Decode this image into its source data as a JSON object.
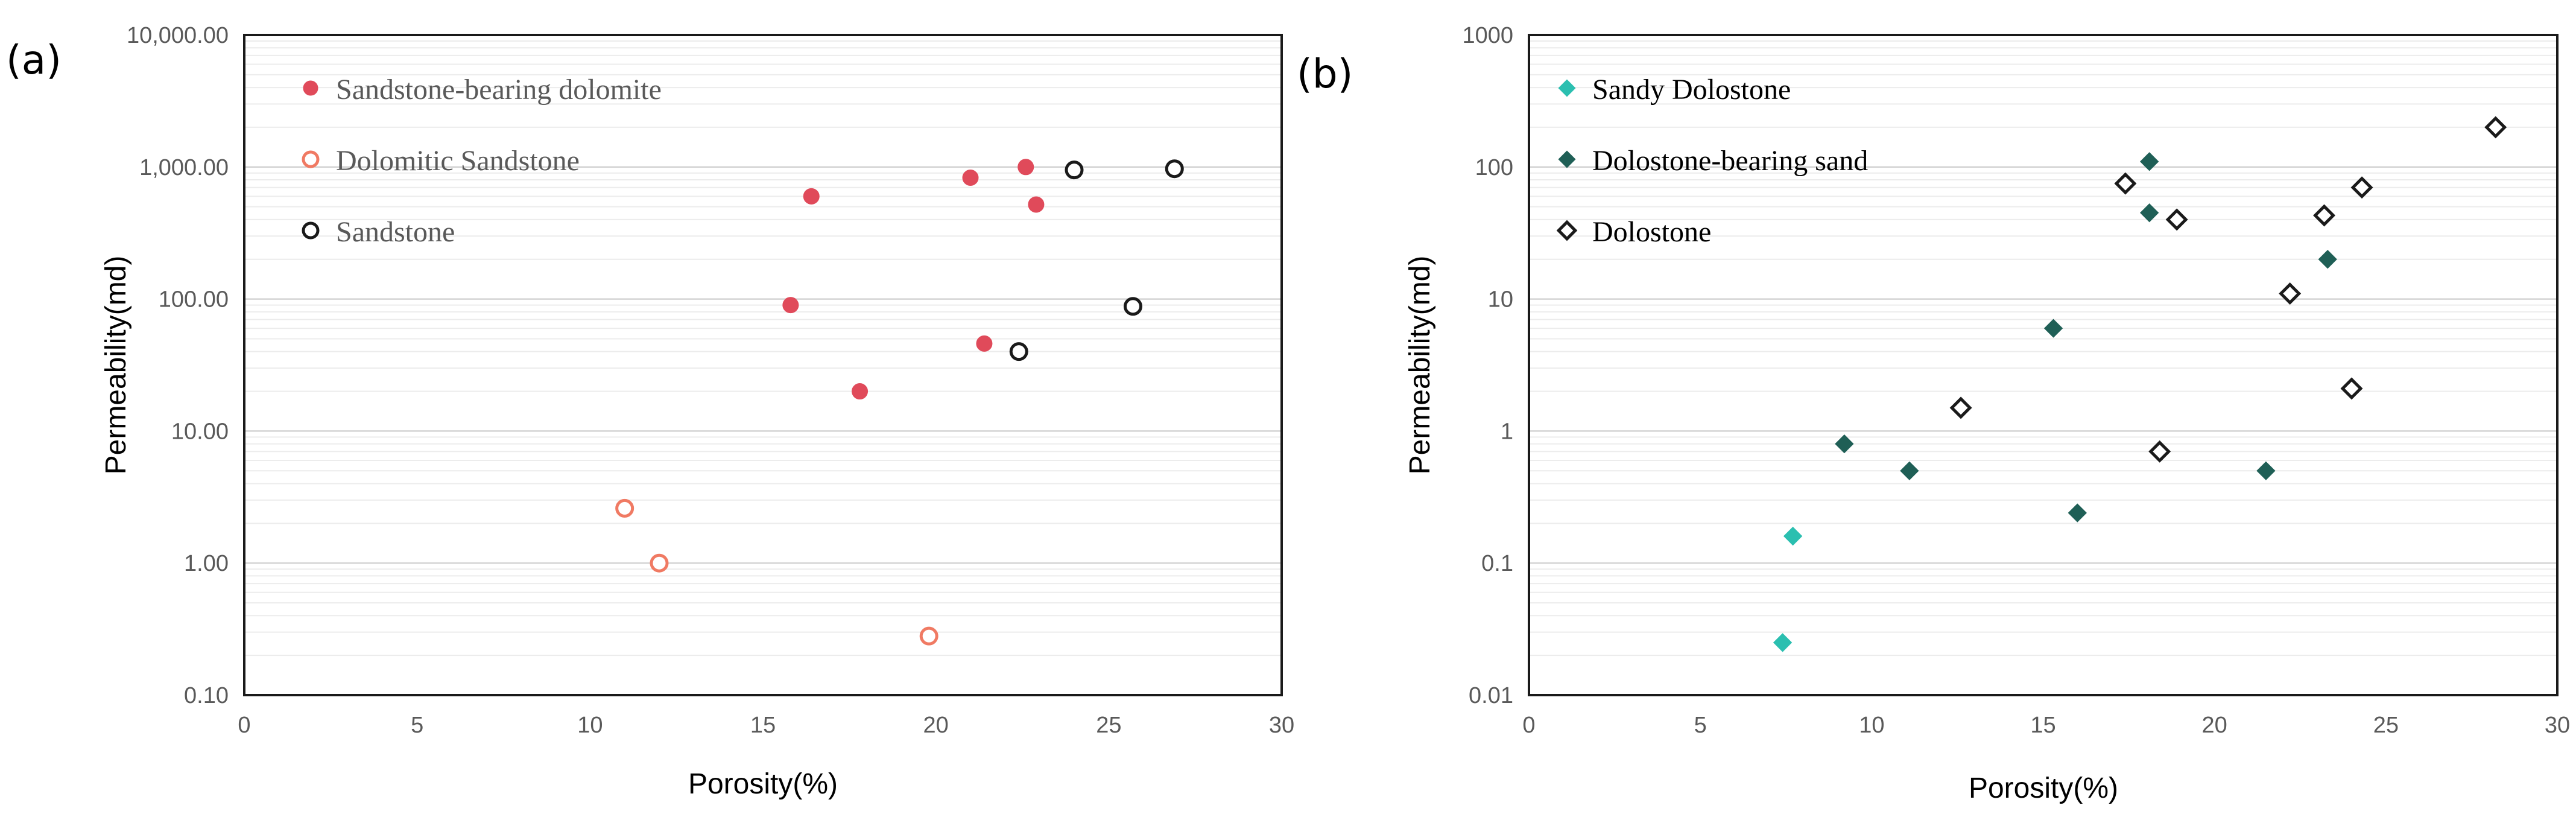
{
  "chart_data": [
    {
      "panel_label": "(a)",
      "type": "scatter",
      "x_scale": "linear",
      "y_scale": "log",
      "xlabel": "Porosity(%)",
      "ylabel": "Permeability(md)",
      "xlim": [
        0,
        30
      ],
      "ylim": [
        0.1,
        10000
      ],
      "x_ticks": [
        0,
        5,
        10,
        15,
        20,
        25,
        30
      ],
      "x_tick_labels": [
        "0",
        "5",
        "10",
        "15",
        "20",
        "25",
        "30"
      ],
      "y_ticks": [
        0.1,
        1,
        10,
        100,
        1000,
        10000
      ],
      "y_tick_labels": [
        "0.10",
        "1.00",
        "10.00",
        "100.00",
        "1,000.00",
        "10,000.00"
      ],
      "grid": true,
      "legend_position": "top-left",
      "legend_text_color": "#595959",
      "series": [
        {
          "name": "Sandstone-bearing dolomite",
          "marker": "filled-circle",
          "color": "#e04a5a",
          "x": [
            16.4,
            15.8,
            17.8,
            21.0,
            22.6,
            22.9,
            21.4
          ],
          "y": [
            600,
            90,
            20,
            830,
            1000,
            520,
            46
          ]
        },
        {
          "name": "Dolomitic Sandstone",
          "marker": "open-circle",
          "color": "#f07a63",
          "x": [
            11.0,
            12.0,
            19.8
          ],
          "y": [
            2.6,
            1.0,
            0.28
          ]
        },
        {
          "name": "Sandstone",
          "marker": "open-circle",
          "color": "#1a1a1a",
          "x": [
            24.0,
            26.9,
            25.7,
            22.4
          ],
          "y": [
            950,
            970,
            88,
            40
          ]
        }
      ]
    },
    {
      "panel_label": "(b)",
      "type": "scatter",
      "x_scale": "linear",
      "y_scale": "log",
      "xlabel": "Porosity(%)",
      "ylabel": "Permeability(md)",
      "xlim": [
        0,
        30
      ],
      "ylim": [
        0.01,
        1000
      ],
      "x_ticks": [
        0,
        5,
        10,
        15,
        20,
        25,
        30
      ],
      "x_tick_labels": [
        "0",
        "5",
        "10",
        "15",
        "20",
        "25",
        "30"
      ],
      "y_ticks": [
        0.01,
        0.1,
        1,
        10,
        100,
        1000
      ],
      "y_tick_labels": [
        "0.01",
        "0.1",
        "1",
        "10",
        "100",
        "1000"
      ],
      "grid": true,
      "legend_position": "top-left",
      "legend_text_color": "#000000",
      "series": [
        {
          "name": "Sandy Dolostone",
          "marker": "filled-diamond",
          "color": "#2bbfb0",
          "x": [
            7.7,
            7.4
          ],
          "y": [
            0.16,
            0.025
          ]
        },
        {
          "name": "Dolostone-bearing sand",
          "marker": "filled-diamond",
          "color": "#1f5f56",
          "x": [
            9.2,
            11.1,
            15.3,
            16.0,
            18.1,
            18.1,
            23.3,
            21.5
          ],
          "y": [
            0.8,
            0.5,
            6.0,
            0.24,
            110,
            45,
            20,
            0.5
          ]
        },
        {
          "name": "Dolostone",
          "marker": "open-diamond",
          "color": "#1a1a1a",
          "x": [
            12.6,
            17.4,
            18.9,
            18.4,
            22.2,
            23.2,
            24.3,
            24.0,
            28.2
          ],
          "y": [
            1.5,
            75,
            40,
            0.7,
            11,
            43,
            70,
            2.1,
            200
          ]
        }
      ]
    }
  ]
}
